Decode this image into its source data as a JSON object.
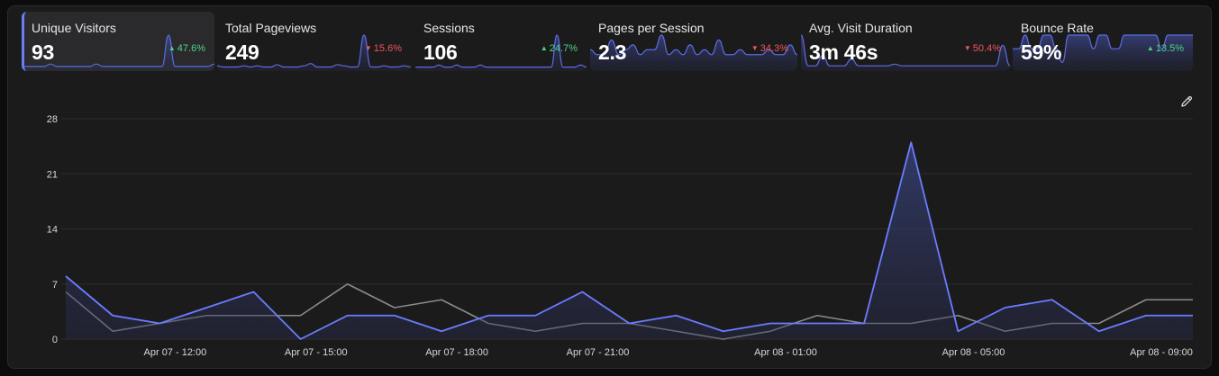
{
  "metrics": [
    {
      "label": "Unique Visitors",
      "value": "93",
      "delta": "47.6%",
      "trend": "up",
      "active": true,
      "spark": [
        1,
        1,
        1,
        1,
        2,
        1,
        1,
        1,
        1,
        1,
        1,
        2,
        1,
        1,
        1,
        1,
        1,
        1,
        1,
        1,
        1,
        1,
        14,
        1,
        1,
        1,
        1,
        1,
        1,
        2
      ]
    },
    {
      "label": "Total Pageviews",
      "value": "249",
      "delta": "15.6%",
      "trend": "down",
      "active": false,
      "spark": [
        3,
        2,
        2,
        2,
        3,
        2,
        3,
        2,
        2,
        4,
        2,
        2,
        2,
        3,
        5,
        2,
        2,
        2,
        4,
        3,
        2,
        2,
        30,
        2,
        2,
        3,
        2,
        2,
        3,
        2
      ]
    },
    {
      "label": "Sessions",
      "value": "106",
      "delta": "24.7%",
      "trend": "up",
      "active": false,
      "spark": [
        1,
        1,
        1,
        1,
        2,
        1,
        1,
        2,
        1,
        1,
        1,
        2,
        1,
        1,
        1,
        1,
        1,
        1,
        1,
        1,
        1,
        1,
        1,
        1,
        16,
        1,
        1,
        1,
        2,
        1
      ]
    },
    {
      "label": "Pages per Session",
      "value": "2.3",
      "delta": "34.3%",
      "trend": "down",
      "active": false,
      "spark": [
        4,
        3,
        3,
        6,
        3,
        4,
        5,
        3,
        4,
        4,
        7,
        3,
        4,
        3,
        5,
        3,
        4,
        3,
        6,
        3,
        3,
        4,
        3,
        3,
        3,
        4,
        3,
        3,
        5,
        3
      ]
    },
    {
      "label": "Avg. Visit Duration",
      "value": "3m 46s",
      "delta": "50.4%",
      "trend": "down",
      "active": false,
      "spark": [
        20,
        2,
        2,
        8,
        2,
        2,
        2,
        6,
        2,
        2,
        2,
        2,
        2,
        3,
        2,
        2,
        2,
        2,
        2,
        2,
        2,
        2,
        2,
        2,
        2,
        2,
        2,
        2,
        14,
        2
      ]
    },
    {
      "label": "Bounce Rate",
      "value": "59%",
      "delta": "13.5%",
      "trend": "up",
      "active": false,
      "spark": [
        6,
        6,
        10,
        6,
        6,
        10,
        10,
        6,
        2,
        10,
        10,
        10,
        10,
        6,
        10,
        10,
        6,
        6,
        10,
        10,
        10,
        10,
        10,
        10,
        6,
        10,
        10,
        10,
        10,
        10
      ]
    }
  ],
  "chart_data": {
    "type": "line",
    "ylim": [
      0,
      28
    ],
    "yticks": [
      0,
      7,
      14,
      21,
      28
    ],
    "x_count": 25,
    "x_tick_labels": [
      {
        "index": 3,
        "label": "Apr 07 - 12:00"
      },
      {
        "index": 6,
        "label": "Apr 07 - 15:00"
      },
      {
        "index": 9,
        "label": "Apr 07 - 18:00"
      },
      {
        "index": 12,
        "label": "Apr 07 - 21:00"
      },
      {
        "index": 16,
        "label": "Apr 08 - 01:00"
      },
      {
        "index": 20,
        "label": "Apr 08 - 05:00"
      },
      {
        "index": 24,
        "label": "Apr 08 - 09:00"
      }
    ],
    "series": [
      {
        "role": "current",
        "color": "#6b7cff",
        "filled": true,
        "values": [
          8,
          3,
          2,
          4,
          6,
          0,
          3,
          3,
          1,
          3,
          3,
          6,
          2,
          3,
          1,
          2,
          2,
          2,
          25,
          1,
          4,
          5,
          1,
          3,
          3
        ]
      },
      {
        "role": "previous",
        "color": "#8a8a8a",
        "filled": false,
        "values": [
          6,
          1,
          2,
          3,
          3,
          3,
          7,
          4,
          5,
          2,
          1,
          2,
          2,
          1,
          0,
          1,
          3,
          2,
          2,
          3,
          1,
          2,
          2,
          5,
          5
        ]
      }
    ],
    "grid": true,
    "legend": "none"
  },
  "icons": {
    "edit": "pencil-icon"
  },
  "colors": {
    "accent": "#6b7cff",
    "up": "#4fd38b",
    "down": "#f2555a"
  }
}
